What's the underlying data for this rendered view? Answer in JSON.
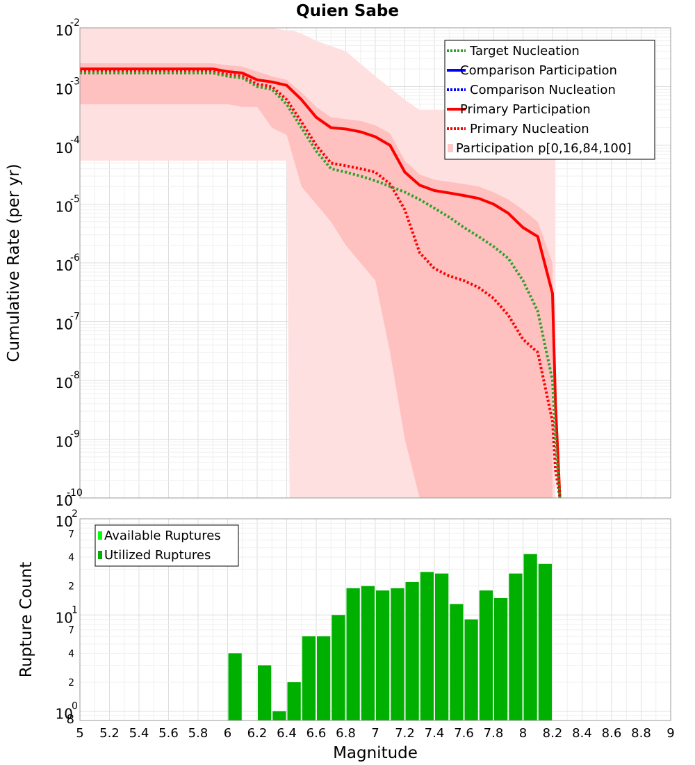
{
  "chart_data": [
    {
      "type": "line",
      "title": "Quien Sabe",
      "xlabel": "Magnitude",
      "ylabel": "Cumulative Rate (per yr)",
      "xlim": [
        5,
        9
      ],
      "ylim": [
        1e-10,
        0.01
      ],
      "yscale": "log",
      "y_tick_labels": [
        {
          "base": "10",
          "exp": "-10",
          "value": 1e-10
        },
        {
          "base": "10",
          "exp": "-9",
          "value": 1e-09
        },
        {
          "base": "10",
          "exp": "-8",
          "value": 1e-08
        },
        {
          "base": "10",
          "exp": "-7",
          "value": 1e-07
        },
        {
          "base": "10",
          "exp": "-6",
          "value": 1e-06
        },
        {
          "base": "10",
          "exp": "-5",
          "value": 1e-05
        },
        {
          "base": "10",
          "exp": "-4",
          "value": 0.0001
        },
        {
          "base": "10",
          "exp": "-3",
          "value": 0.001
        },
        {
          "base": "10",
          "exp": "-2",
          "value": 0.01
        }
      ],
      "legend_position": "top-right",
      "legend": [
        {
          "label": "Target Nucleation",
          "color": "#2ca02c",
          "style": "dotted"
        },
        {
          "label": "Comparison Participation",
          "color": "#0000ff",
          "style": "solid"
        },
        {
          "label": "Comparison Nucleation",
          "color": "#0000ff",
          "style": "dotted"
        },
        {
          "label": "Primary Participation",
          "color": "#ff0000",
          "style": "solid"
        },
        {
          "label": "Primary Nucleation",
          "color": "#ff0000",
          "style": "dotted"
        },
        {
          "label": "Participation p[0,16,84,100]",
          "color": "#ffc8c8",
          "style": "fill"
        }
      ],
      "series": [
        {
          "name": "Primary Participation",
          "color": "#ff0000",
          "style": "solid",
          "x": [
            5.0,
            5.9,
            6.0,
            6.1,
            6.2,
            6.3,
            6.4,
            6.5,
            6.6,
            6.7,
            6.8,
            6.9,
            7.0,
            7.1,
            7.2,
            7.3,
            7.4,
            7.5,
            7.6,
            7.7,
            7.8,
            7.9,
            8.0,
            8.1,
            8.2,
            8.22,
            8.25
          ],
          "y": [
            0.002,
            0.002,
            0.0018,
            0.0017,
            0.0013,
            0.0012,
            0.00105,
            0.0006,
            0.0003,
            0.0002,
            0.00019,
            0.00017,
            0.00014,
            0.0001,
            3.5e-05,
            2.1e-05,
            1.7e-05,
            1.55e-05,
            1.4e-05,
            1.25e-05,
            1e-05,
            7e-06,
            4e-06,
            2.8e-06,
            3e-07,
            4e-09,
            1e-10
          ]
        },
        {
          "name": "Primary Nucleation",
          "color": "#ff0000",
          "style": "dotted",
          "x": [
            5.0,
            5.9,
            6.0,
            6.1,
            6.2,
            6.3,
            6.4,
            6.5,
            6.6,
            6.7,
            6.8,
            6.9,
            7.0,
            7.1,
            7.2,
            7.3,
            7.4,
            7.5,
            7.6,
            7.7,
            7.8,
            7.9,
            8.0,
            8.1,
            8.2,
            8.22,
            8.25
          ],
          "y": [
            0.0018,
            0.0018,
            0.0016,
            0.0015,
            0.0011,
            0.001,
            0.0006,
            0.00025,
            0.0001,
            5e-05,
            4.5e-05,
            4e-05,
            3.5e-05,
            2.2e-05,
            8e-06,
            1.5e-06,
            8e-07,
            6e-07,
            5e-07,
            3.8e-07,
            2.5e-07,
            1.3e-07,
            5e-08,
            3e-08,
            2e-09,
            3e-10,
            1e-10
          ]
        },
        {
          "name": "Target Nucleation",
          "color": "#2ca02c",
          "style": "dotted",
          "x": [
            5.0,
            5.9,
            6.0,
            6.1,
            6.2,
            6.3,
            6.4,
            6.5,
            6.6,
            6.7,
            6.8,
            6.9,
            7.0,
            7.1,
            7.2,
            7.3,
            7.4,
            7.5,
            7.6,
            7.7,
            7.8,
            7.9,
            8.0,
            8.1,
            8.2,
            8.22,
            8.25
          ],
          "y": [
            0.0017,
            0.0017,
            0.0015,
            0.0014,
            0.001,
            0.0009,
            0.0005,
            0.0002,
            8e-05,
            4e-05,
            3.5e-05,
            3e-05,
            2.5e-05,
            2e-05,
            1.6e-05,
            1.2e-05,
            8.5e-06,
            6e-06,
            4e-06,
            2.8e-06,
            1.9e-06,
            1.2e-06,
            5e-07,
            1.5e-07,
            1e-08,
            1e-09,
            1e-10
          ]
        }
      ],
      "bands": [
        {
          "name": "Participation p[0,100]",
          "color": "#ffe0e0",
          "x": [
            5.0,
            6.0,
            6.2,
            6.3,
            6.4,
            6.42,
            6.44,
            6.5,
            6.6,
            6.8,
            7.0,
            7.2,
            7.3,
            7.4,
            7.5,
            7.6,
            7.8,
            8.0,
            8.1,
            8.2,
            8.22
          ],
          "upper": [
            0.01,
            0.01,
            0.01,
            0.01,
            0.009,
            0.009,
            0.009,
            0.008,
            0.006,
            0.004,
            0.0015,
            0.0006,
            0.0004,
            0.0004,
            0.0004,
            0.0004,
            0.0004,
            0.0004,
            0.0004,
            0.0004,
            0.0004
          ],
          "lower": [
            5.5e-05,
            5.5e-05,
            5.5e-05,
            5.5e-05,
            5.5e-05,
            1e-10,
            1e-10,
            1e-10,
            1e-10,
            1e-10,
            1e-10,
            1e-10,
            1e-10,
            1e-10,
            1e-10,
            1e-10,
            1e-10,
            1e-10,
            1e-10,
            1e-10,
            1e-10
          ]
        },
        {
          "name": "Participation p[16,84]",
          "color": "#ffc0c0",
          "x": [
            5.0,
            5.9,
            6.0,
            6.1,
            6.2,
            6.3,
            6.4,
            6.5,
            6.6,
            6.7,
            6.8,
            6.9,
            7.0,
            7.1,
            7.2,
            7.3,
            7.4,
            7.5,
            7.6,
            7.7,
            7.8,
            7.9,
            8.0,
            8.1,
            8.2
          ],
          "upper": [
            0.0025,
            0.0025,
            0.0023,
            0.0022,
            0.0018,
            0.0015,
            0.0013,
            0.0008,
            0.00045,
            0.0003,
            0.00028,
            0.00026,
            0.00022,
            0.00016,
            5.5e-05,
            3.2e-05,
            2.6e-05,
            2.4e-05,
            2.2e-05,
            2e-05,
            1.6e-05,
            1.2e-05,
            8e-06,
            5e-06,
            1e-06
          ],
          "lower": [
            0.0005,
            0.0005,
            0.0005,
            0.00045,
            0.00045,
            0.0002,
            0.00015,
            2e-05,
            1e-05,
            5e-06,
            2e-06,
            1e-06,
            5e-07,
            3e-08,
            1e-09,
            1e-10,
            1e-10,
            1e-10,
            1e-10,
            1e-10,
            1e-10,
            1e-10,
            1e-10,
            1e-10,
            1e-10
          ]
        }
      ]
    },
    {
      "type": "bar",
      "xlabel": "Magnitude",
      "ylabel": "Rupture Count",
      "xlim": [
        5,
        9
      ],
      "ylim": [
        0.8,
        100
      ],
      "yscale": "log",
      "x_ticks": [
        "5",
        "5.2",
        "5.4",
        "5.6",
        "5.8",
        "6",
        "6.2",
        "6.4",
        "6.6",
        "6.8",
        "7",
        "7.2",
        "7.4",
        "7.6",
        "7.8",
        "8",
        "8.2",
        "8.4",
        "8.6",
        "8.8",
        "9"
      ],
      "y_tick_labels": [
        {
          "base": "10",
          "exp": "0",
          "value": 1
        },
        {
          "base": "10",
          "exp": "1",
          "value": 10
        },
        {
          "base": "10",
          "exp": "2",
          "value": 100
        }
      ],
      "y_minor_labels": [
        {
          "label": "8",
          "value": 0.8
        },
        {
          "label": "2",
          "value": 2
        },
        {
          "label": "4",
          "value": 4
        },
        {
          "label": "7",
          "value": 7
        },
        {
          "label": "2",
          "value": 20
        },
        {
          "label": "4",
          "value": 40
        },
        {
          "label": "7",
          "value": 70
        }
      ],
      "legend_position": "top-left",
      "legend": [
        {
          "label": "Available Ruptures",
          "color": "#00ff00"
        },
        {
          "label": "Utilized Ruptures",
          "color": "#00b000"
        }
      ],
      "bar_color": "#00b000",
      "bar_width": 0.1,
      "bins": [
        6.05,
        6.25,
        6.35,
        6.45,
        6.55,
        6.65,
        6.75,
        6.85,
        6.95,
        7.05,
        7.15,
        7.25,
        7.35,
        7.45,
        7.55,
        7.65,
        7.75,
        7.85,
        7.95,
        8.05,
        8.15
      ],
      "values": [
        4,
        3,
        1,
        2,
        6,
        6,
        10,
        19,
        20,
        18,
        19,
        22,
        28,
        27,
        13,
        9,
        18,
        15,
        27,
        43,
        34
      ]
    }
  ]
}
